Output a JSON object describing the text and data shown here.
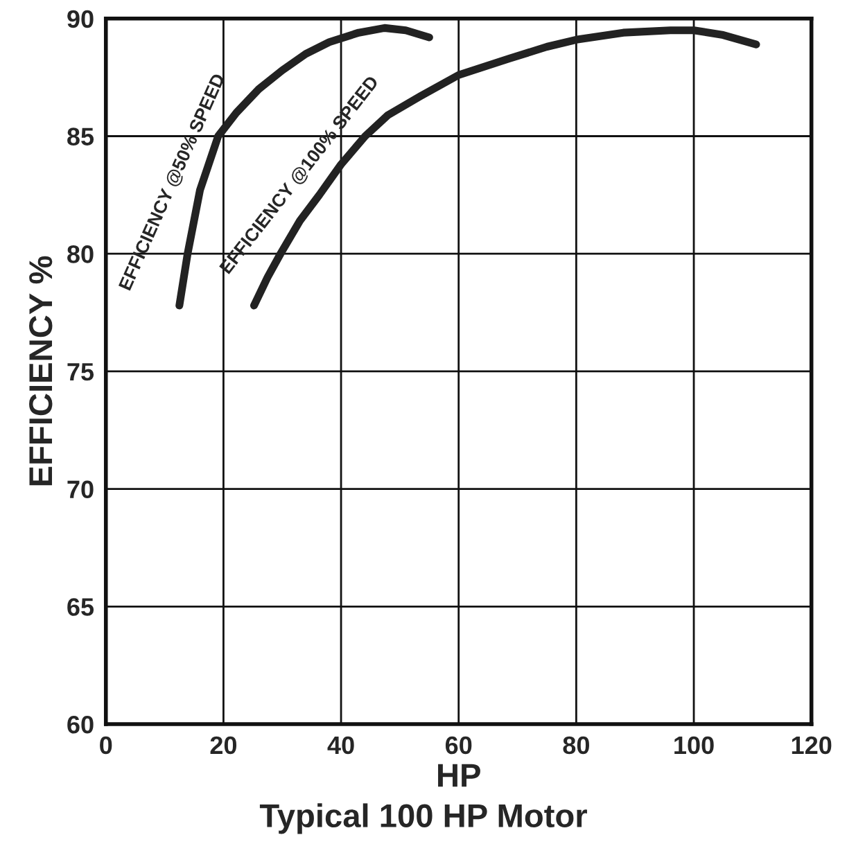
{
  "chart_data": {
    "type": "line",
    "title": "Typical 100 HP Motor",
    "xlabel": "HP",
    "ylabel": "EFFICIENCY %",
    "xlim": [
      0,
      120
    ],
    "xticks": [
      0,
      20,
      40,
      60,
      80,
      100,
      120
    ],
    "ylim": [
      60,
      90
    ],
    "yticks": [
      60,
      65,
      70,
      75,
      80,
      85,
      90
    ],
    "grid": true,
    "marker": "none",
    "line_style": "solid",
    "series": [
      {
        "color": "#222222",
        "x": [
          12.5,
          13.9,
          16,
          19.1,
          22.2,
          26,
          30,
          34,
          38,
          43,
          47.4,
          51,
          55
        ],
        "values": [
          77.8,
          80,
          82.7,
          85,
          86,
          87,
          87.8,
          88.5,
          89,
          89.4,
          89.6,
          89.5,
          89.2
        ]
      },
      {
        "color": "#222222",
        "x": [
          25.2,
          27.5,
          29.7,
          33,
          36.3,
          40,
          44.1,
          48,
          53.5,
          60,
          68.6,
          75,
          80,
          88,
          96,
          100,
          105,
          110.6
        ],
        "values": [
          77.8,
          79,
          80,
          81.4,
          82.5,
          83.8,
          85,
          85.9,
          86.7,
          87.6,
          88.3,
          88.8,
          89.1,
          89.4,
          89.5,
          89.5,
          89.3,
          88.9
        ]
      }
    ],
    "annotations": [
      {
        "text": "EFFICIENCY @50% SPEED",
        "x": 16,
        "y": 82.7
      },
      {
        "text": "EFFICIENCY @100% SPEED",
        "x": 36.3,
        "y": 82.5
      }
    ]
  }
}
